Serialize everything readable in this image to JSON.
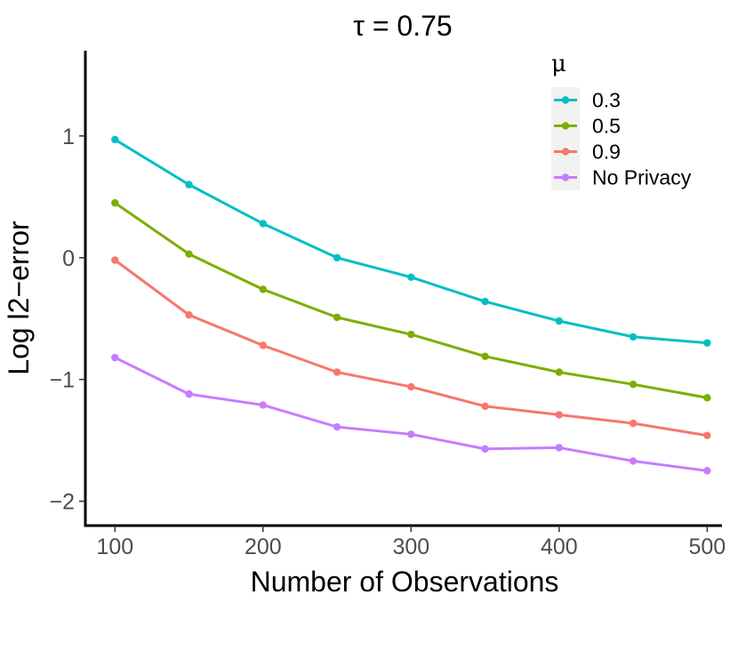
{
  "chart_data": {
    "type": "line",
    "title": "τ = 0.75",
    "xlabel": "Number of Observations",
    "ylabel": "Log l2−error",
    "x": [
      100,
      150,
      200,
      250,
      300,
      350,
      400,
      450,
      500
    ],
    "xlim": [
      80,
      510
    ],
    "ylim": [
      -2.2,
      1.7
    ],
    "xticks": [
      100,
      200,
      300,
      400,
      500
    ],
    "yticks": [
      1,
      0,
      -1,
      -2
    ],
    "ytick_labels": [
      "1",
      "0",
      "−1",
      "−2"
    ],
    "grid": false,
    "legend": {
      "title": "μ",
      "position": "top-right"
    },
    "series": [
      {
        "name": "0.3",
        "color": "#00BFC4",
        "values": [
          0.97,
          0.6,
          0.28,
          0.0,
          -0.16,
          -0.36,
          -0.52,
          -0.65,
          -0.7
        ]
      },
      {
        "name": "0.5",
        "color": "#7CAE00",
        "values": [
          0.45,
          0.03,
          -0.26,
          -0.49,
          -0.63,
          -0.81,
          -0.94,
          -1.04,
          -1.15
        ]
      },
      {
        "name": "0.9",
        "color": "#F8766D",
        "values": [
          -0.02,
          -0.47,
          -0.72,
          -0.94,
          -1.06,
          -1.22,
          -1.29,
          -1.36,
          -1.46
        ]
      },
      {
        "name": "No Privacy",
        "color": "#C77CFF",
        "values": [
          -0.82,
          -1.12,
          -1.21,
          -1.39,
          -1.45,
          -1.57,
          -1.56,
          -1.67,
          -1.75
        ]
      }
    ]
  }
}
